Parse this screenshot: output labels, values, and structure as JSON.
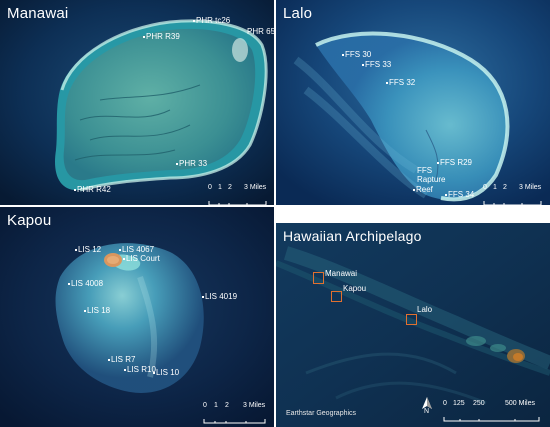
{
  "panels": {
    "manawai": {
      "title": "Manawai",
      "sites": [
        "PHR R39",
        "PHR tc26",
        "PHR 65",
        "PHR 33",
        "PHR R42"
      ],
      "scale": [
        "0",
        "1",
        "2",
        "3 Miles"
      ]
    },
    "lalo": {
      "title": "Lalo",
      "sites": [
        "FFS 30",
        "FFS 33",
        "FFS 32",
        "FFS R29",
        "FFS",
        "Rapture",
        "Reef",
        "FFS 34"
      ],
      "scale": [
        "0",
        "1",
        "2",
        "3 Miles"
      ]
    },
    "kapou": {
      "title": "Kapou",
      "sites": [
        "LIS 12",
        "LIS 4067",
        "LIS Court",
        "LIS 4008",
        "LIS 4019",
        "LIS 18",
        "LIS R7",
        "LIS R10",
        "LIS 10"
      ],
      "scale": [
        "0",
        "1",
        "2",
        "3 Miles"
      ]
    },
    "archipelago": {
      "title": "Hawaiian Archipelago",
      "islands": [
        "Manawai",
        "Kapou",
        "Lalo"
      ],
      "scale": [
        "0",
        "125",
        "250",
        "500 Miles"
      ],
      "north": "N",
      "credit": "Earthstar Geographics"
    }
  },
  "colors": {
    "ocean_deep": "#0a1e3a",
    "reef_light": "#7fd4d2",
    "reef_mid": "#3aa6b8",
    "land_sand": "#d69a6a",
    "highlight_box": "#e07030"
  }
}
